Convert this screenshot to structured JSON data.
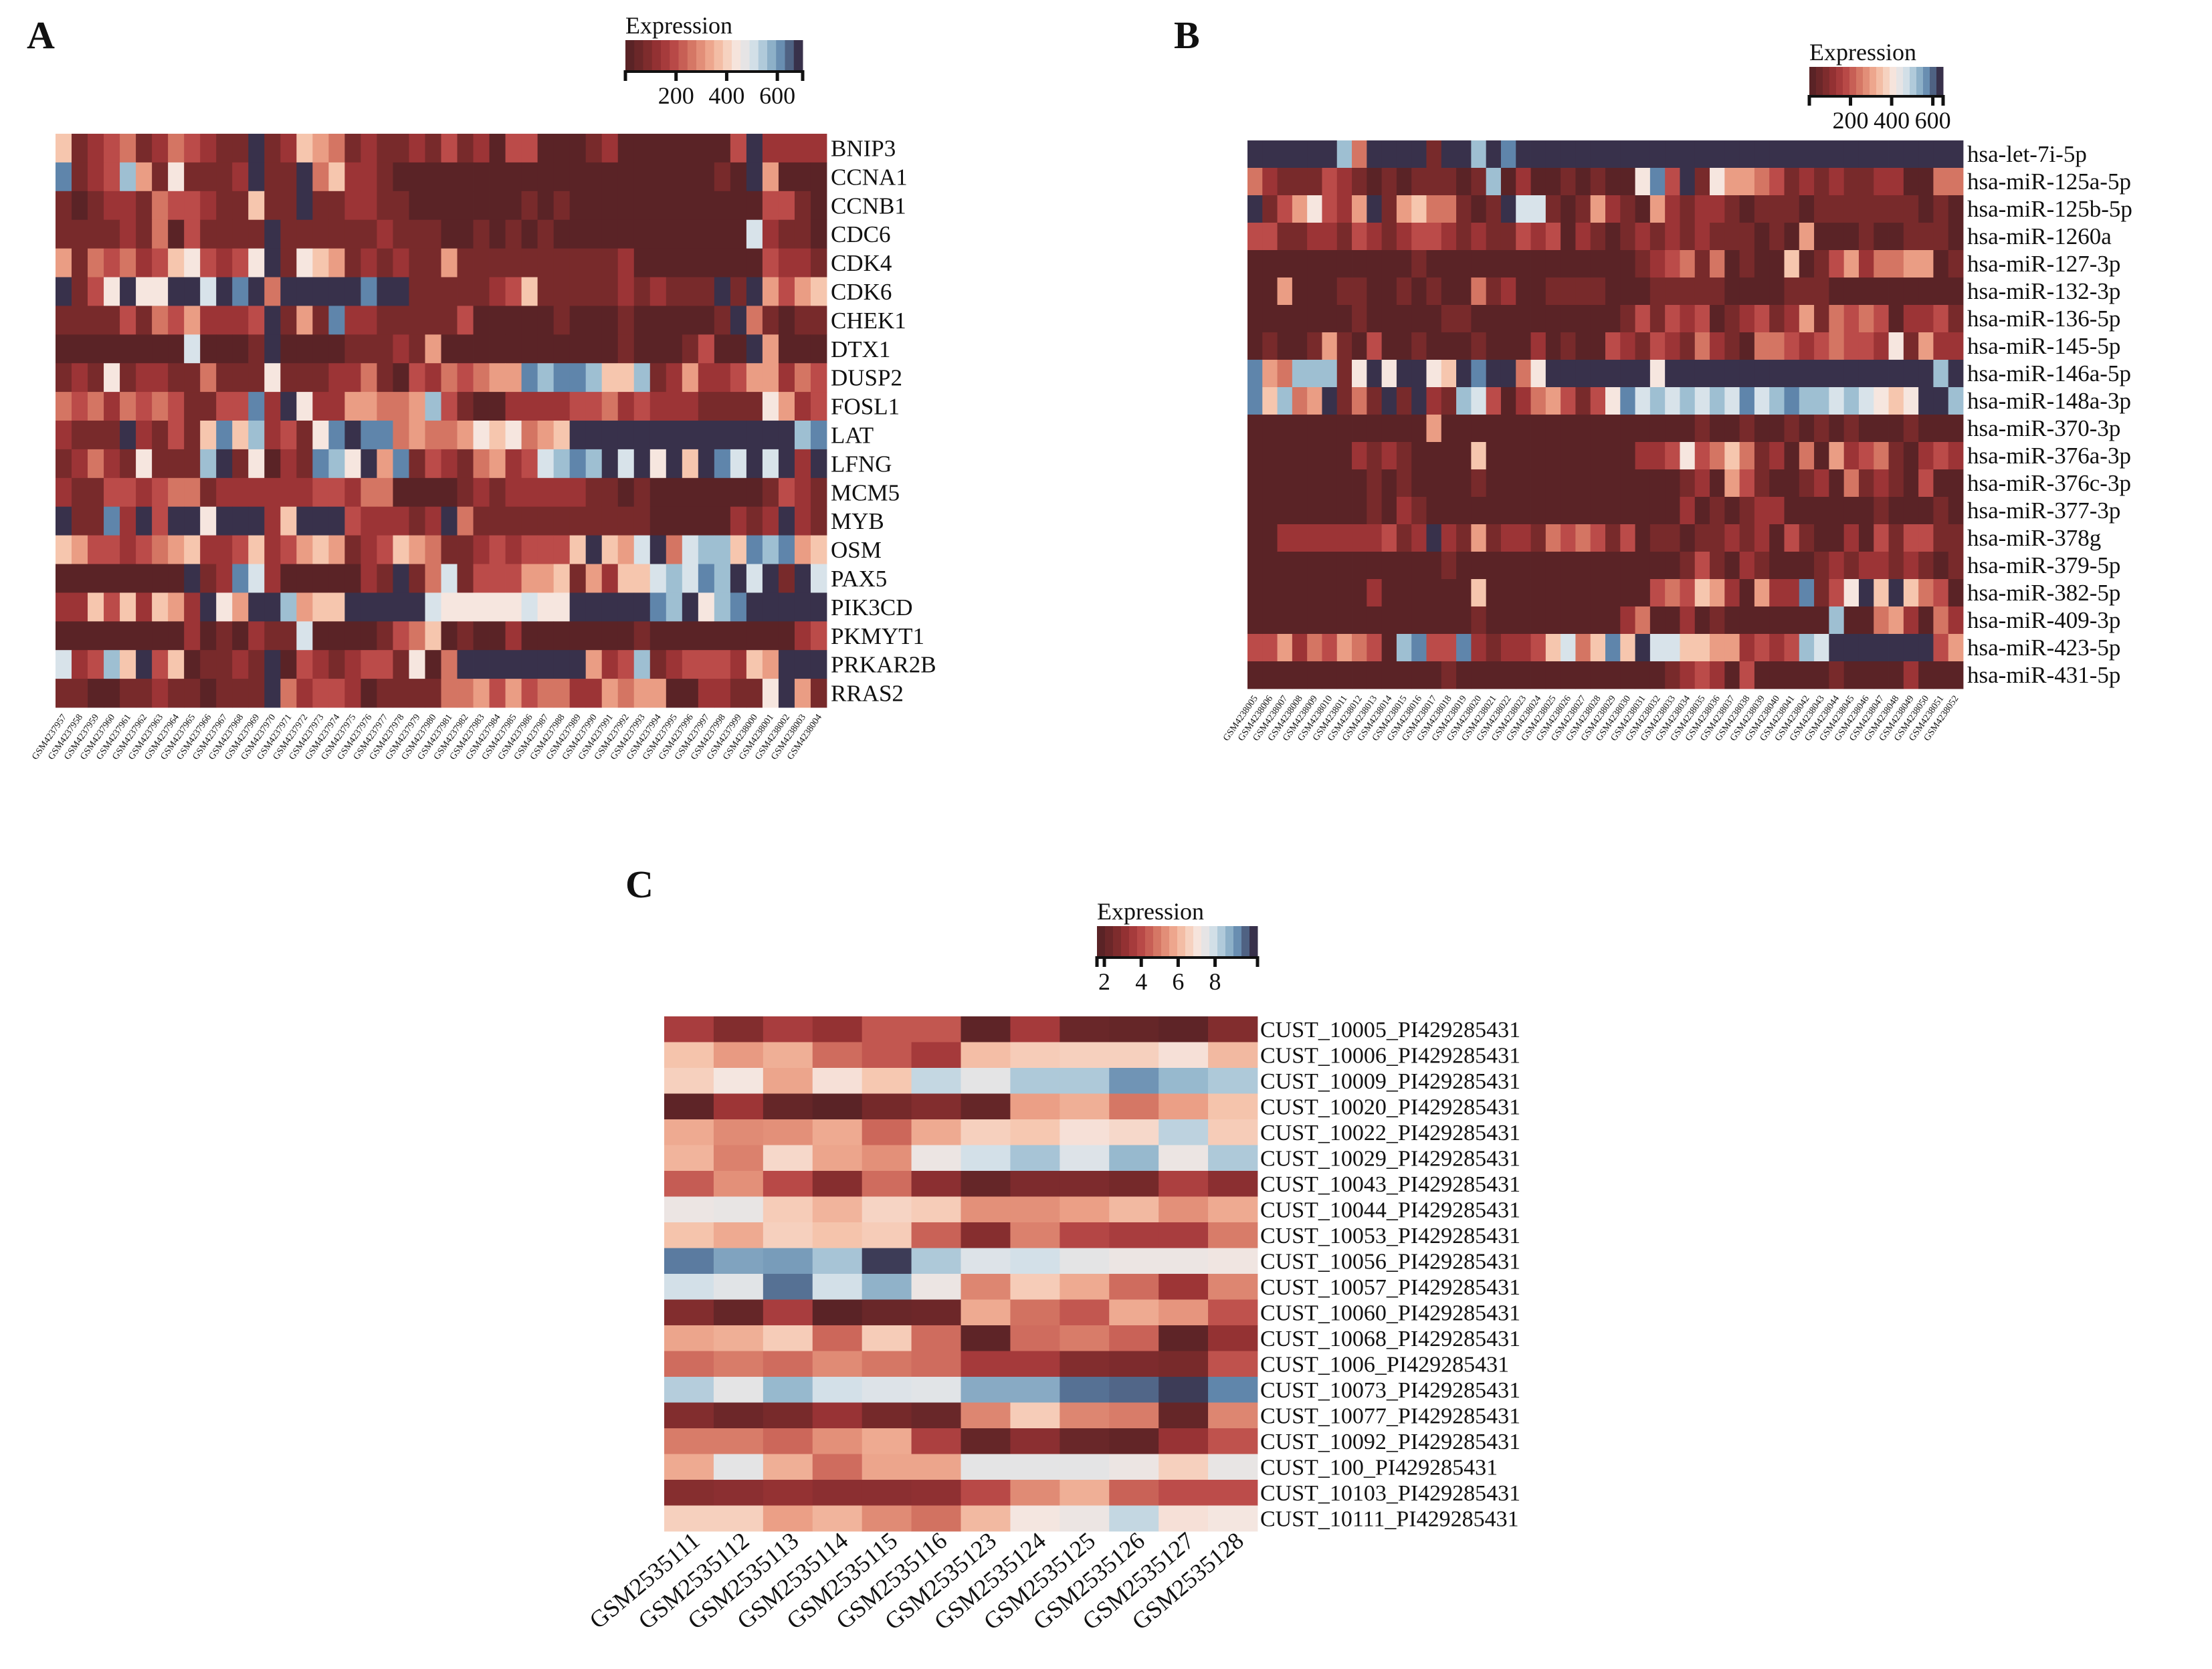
{
  "palette": [
    "#5a2326",
    "#782a2b",
    "#9c3436",
    "#bb4b49",
    "#d47563",
    "#ea9d84",
    "#f6c6ae",
    "#f6e6df",
    "#d8e3ea",
    "#9ebfd2",
    "#5f85ab",
    "#38314b"
  ],
  "chart_data": [
    {
      "panel": "A",
      "type": "heatmap",
      "legend": {
        "title": "Expression",
        "ticks": [
          "200",
          "400",
          "600"
        ],
        "range": [
          0,
          700
        ]
      },
      "level_encoding": "each character is a colour level 0-9,a(10),b(11) on the Expression scale; value ≈ level × 60",
      "rows": [
        "BNIP3",
        "CCNA1",
        "CCNB1",
        "CDC6",
        "CDK4",
        "CDK6",
        "CHEK1",
        "DTX1",
        "DUSP2",
        "FOSL1",
        "LAT",
        "LFNG",
        "MCM5",
        "MYB",
        "OSM",
        "PAX5",
        "PIK3CD",
        "PKMYT1",
        "PRKAR2B",
        "RRAS2"
      ],
      "columns": [
        "GSM4237957",
        "GSM4237958",
        "GSM4237959",
        "GSM4237960",
        "GSM4237961",
        "GSM4237962",
        "GSM4237963",
        "GSM4237964",
        "GSM4237965",
        "GSM4237966",
        "GSM4237967",
        "GSM4237968",
        "GSM4237969",
        "GSM4237970",
        "GSM4237971",
        "GSM4237972",
        "GSM4237973",
        "GSM4237974",
        "GSM4237975",
        "GSM4237976",
        "GSM4237977",
        "GSM4237978",
        "GSM4237979",
        "GSM4237980",
        "GSM4237981",
        "GSM4237982",
        "GSM4237983",
        "GSM4237984",
        "GSM4237985",
        "GSM4237986",
        "GSM4237987",
        "GSM4237988",
        "GSM4237989",
        "GSM4237990",
        "GSM4237991",
        "GSM4237992",
        "GSM4237993",
        "GSM4237994",
        "GSM4237995",
        "GSM4237996",
        "GSM4237997",
        "GSM4237998",
        "GSM4237999",
        "GSM4238000",
        "GSM4238001",
        "GSM4238002",
        "GSM4238003",
        "GSM4238004"
      ],
      "levels": [
        "61234124 3211b126 54121121 31203300 01200000 003b2222",
        "a1239517 1112b11b 46221000 00000000 00000000 010b5000",
        "10122143 3211611b 11221100 00000101 00000000 00003310",
        "11112140 31111b11 11112111 00101010 00000000 00082110",
        "51434236 73237b17 65121211 51111111 11120000 00003221",
        "b137b77b b8bab4bb bbbabb11 11123611 11121211 1b1b5356",
        "11113143 52223b15 1a221111 13000001 00010000 01b41011",
        "00000000 80001b00 00111215 00000000 00010001 300b5000",
        "12171221 14111711 12241032 43455a9a a9669125 22355243",
        "43424343 1133a2b7 22554459 31002222 33423222 11117523",
        "2111b213 16a69231 7abaa454 45767456 bbbbbbbb bbbbbb9a",
        "12421711 19b17021 a97b5a13 21452389 a9b8b7b6 ba8b8b2b",
        "21133234 41222222 33244000 01212222 21101000 00001321",
        "b11a2b3b b7bbb26b bb322212 b4111111 11111000 00212b21",
        "65332345 62236235 65123654 11232333 6b658b48 996a9a56",
        "00000000 b12a8200 00021b14 81333556 15266898 a9b8b1b8",
        "22636265 2b75bb95 66bbbbb8 77777877 bbbbba9b 79abbbbb",
        "00000000 20102118 00001346 01002000 00001000 00000023",
        "82396b36 01121b03 21233170 4bbbbbbb b5239123 33265bbb",
        "11001121 10111b42 33201111 44535344 22545500 22117b51"
      ]
    },
    {
      "panel": "B",
      "type": "heatmap",
      "legend": {
        "title": "Expression",
        "ticks": [
          "200",
          "400",
          "600"
        ],
        "range": [
          0,
          650
        ]
      },
      "level_encoding": "each character is a colour level 0-9,a(10),b(11) on the Expression scale; value ≈ level × 55",
      "rows": [
        "hsa-let-7i-5p",
        "hsa-miR-125a-5p",
        "hsa-miR-125b-5p",
        "hsa-miR-1260a",
        "hsa-miR-127-3p",
        "hsa-miR-132-3p",
        "hsa-miR-136-5p",
        "hsa-miR-145-5p",
        "hsa-miR-146a-5p",
        "hsa-miR-148a-3p",
        "hsa-miR-370-3p",
        "hsa-miR-376a-3p",
        "hsa-miR-376c-3p",
        "hsa-miR-377-3p",
        "hsa-miR-378g",
        "hsa-miR-379-5p",
        "hsa-miR-382-5p",
        "hsa-miR-409-3p",
        "hsa-miR-423-5p",
        "hsa-miR-431-5p"
      ],
      "columns": [
        "GSM4238005",
        "GSM4238006",
        "GSM4238007",
        "GSM4238008",
        "GSM4238009",
        "GSM4238010",
        "GSM4238011",
        "GSM4238012",
        "GSM4238013",
        "GSM4238014",
        "GSM4238015",
        "GSM4238016",
        "GSM4238017",
        "GSM4238018",
        "GSM4238019",
        "GSM4238020",
        "GSM4238021",
        "GSM4238022",
        "GSM4238023",
        "GSM4238024",
        "GSM4238025",
        "GSM4238026",
        "GSM4238027",
        "GSM4238028",
        "GSM4238029",
        "GSM4238030",
        "GSM4238031",
        "GSM4238032",
        "GSM4238033",
        "GSM4238034",
        "GSM4238035",
        "GSM4238036",
        "GSM4238037",
        "GSM4238038",
        "GSM4238039",
        "GSM4238040",
        "GSM4238041",
        "GSM4238042",
        "GSM4238043",
        "GSM4238044",
        "GSM4238045",
        "GSM4238046",
        "GSM4238047",
        "GSM4238048",
        "GSM4238049",
        "GSM4238050",
        "GSM4238051",
        "GSM4238052"
      ],
      "levels": [
        "bbbbbb94 bbbb1bb9 babbbbbb bbbbbbbb bbbbbbbb bbbbbbbb",
        "42111321 01011101 90200101 007a3b17 55431212 11220044",
        "b1357325 b1564410 1b881015 21052122 10111011 11111010",
        "33112213 21233212 11323021 01212121 11010500 01001110",
        "00000000 00010000 00000000 00123414 01006013 52445501",
        "00500011 00101004 12001111 00011111 00001110 00000000",
        "00000001 00000110 00000000 01313230 12312514 34302231",
        "01001510 30010001 00020100 32132142 10443234 33271522",
        "a5499917 b7bb76ba bb47bbbb bbb7bbbb bbbbbbbb bbbbbb9b",
        "a6945b14 1b1b2198 30245313 7a898989 8a89a998 98767bb9",
        "00000000 00005000 00000000 00000010 01001010 10001000",
        "00000002 12100006 00000000 00223734 64120405 23410232",
        "00000000 10100001 00000000 00000120 53100120 41210300",
        "00000000 10210000 00000000 00000201 01220000 00100010",
        "00222222 2312b215 12214343 13011011 21203100 20313311",
        "00000000 00000100 00000000 00000131 02100012 12212101",
        "00000000 20000006 00000000 00034365 20522a13 7b6b6430",
        "00000000 00000001 00000000 02400201 00000009 00452042",
        "33524354 309a33a2 12236846 a6b88665 5232398b bbbbbb35",
        "00000000 00000100 00000000 00001232 03000001 00002000"
      ]
    },
    {
      "panel": "C",
      "type": "heatmap",
      "legend": {
        "title": "Expression",
        "ticks": [
          "2",
          "4",
          "6",
          "8"
        ],
        "range": [
          1.6,
          10.3
        ]
      },
      "rows": [
        "CUST_10005_PI429285431",
        "CUST_10006_PI429285431",
        "CUST_10009_PI429285431",
        "CUST_10020_PI429285431",
        "CUST_10022_PI429285431",
        "CUST_10029_PI429285431",
        "CUST_10043_PI429285431",
        "CUST_10044_PI429285431",
        "CUST_10053_PI429285431",
        "CUST_10056_PI429285431",
        "CUST_10057_PI429285431",
        "CUST_10060_PI429285431",
        "CUST_10068_PI429285431",
        "CUST_1006_PI429285431",
        "CUST_10073_PI429285431",
        "CUST_10077_PI429285431",
        "CUST_10092_PI429285431",
        "CUST_100_PI429285431",
        "CUST_10103_PI429285431",
        "CUST_10111_PI429285431"
      ],
      "columns": [
        "GSM2535111",
        "GSM2535112",
        "GSM2535113",
        "GSM2535114",
        "GSM2535115",
        "GSM2535116",
        "GSM2535123",
        "GSM2535124",
        "GSM2535125",
        "GSM2535126",
        "GSM2535127",
        "GSM2535128"
      ],
      "values": [
        [
          3.5,
          2.6,
          3.5,
          3.0,
          4.2,
          4.2,
          1.7,
          3.4,
          2.0,
          1.9,
          1.7,
          2.6
        ],
        [
          6.3,
          5.5,
          5.9,
          4.6,
          4.2,
          3.4,
          6.2,
          6.5,
          6.6,
          6.6,
          7.0,
          6.1
        ],
        [
          6.6,
          7.2,
          5.7,
          7.0,
          6.4,
          8.2,
          7.6,
          8.5,
          8.5,
          9.3,
          8.8,
          8.5
        ],
        [
          1.7,
          3.2,
          1.9,
          1.6,
          2.3,
          2.6,
          1.9,
          5.6,
          5.9,
          4.8,
          5.6,
          6.3
        ],
        [
          5.8,
          5.2,
          5.3,
          5.8,
          4.5,
          5.8,
          6.6,
          6.4,
          7.0,
          6.8,
          8.3,
          6.5
        ],
        [
          6.0,
          5.0,
          6.8,
          5.7,
          5.3,
          7.4,
          8.0,
          8.6,
          7.8,
          8.8,
          7.4,
          8.5
        ],
        [
          4.3,
          5.3,
          3.9,
          2.7,
          4.6,
          2.8,
          1.9,
          2.5,
          2.5,
          2.3,
          3.6,
          2.8
        ],
        [
          7.4,
          7.5,
          6.5,
          6.0,
          6.7,
          6.5,
          5.3,
          5.3,
          5.6,
          6.1,
          5.3,
          5.8
        ],
        [
          6.3,
          5.8,
          6.6,
          6.3,
          6.5,
          4.4,
          2.7,
          5.0,
          3.8,
          3.5,
          3.5,
          4.9
        ],
        [
          9.6,
          9.1,
          9.2,
          8.6,
          10.2,
          8.5,
          7.8,
          8.0,
          7.6,
          7.4,
          7.4,
          7.3
        ],
        [
          8.0,
          7.7,
          9.7,
          8.0,
          8.9,
          7.4,
          5.1,
          6.5,
          5.8,
          4.6,
          3.2,
          5.1
        ],
        [
          2.6,
          1.9,
          3.5,
          1.6,
          2.0,
          2.1,
          5.8,
          4.7,
          4.2,
          5.8,
          5.4,
          4.1
        ],
        [
          5.7,
          5.9,
          6.5,
          4.5,
          6.5,
          4.6,
          1.7,
          4.6,
          4.9,
          4.4,
          1.7,
          3.0
        ],
        [
          4.6,
          4.9,
          4.6,
          5.2,
          4.8,
          4.6,
          3.4,
          3.4,
          2.6,
          2.5,
          2.4,
          4.1
        ],
        [
          8.4,
          7.6,
          8.8,
          8.0,
          7.8,
          7.7,
          9.0,
          9.0,
          9.7,
          9.8,
          10.2,
          9.5
        ],
        [
          2.6,
          2.1,
          2.4,
          3.1,
          2.3,
          2.0,
          5.1,
          6.5,
          5.1,
          4.9,
          1.9,
          5.1
        ],
        [
          4.9,
          4.9,
          4.5,
          5.3,
          5.8,
          3.6,
          1.9,
          2.8,
          2.0,
          1.8,
          3.1,
          4.1
        ],
        [
          5.8,
          7.6,
          5.9,
          4.6,
          5.7,
          5.7,
          7.6,
          7.6,
          7.6,
          7.4,
          6.6,
          7.5
        ],
        [
          2.7,
          2.8,
          3.0,
          2.8,
          2.8,
          2.9,
          3.9,
          5.2,
          5.9,
          4.4,
          4.0,
          4.0
        ],
        [
          6.6,
          6.6,
          5.6,
          6.0,
          5.2,
          4.7,
          6.1,
          7.2,
          7.4,
          8.2,
          7.0,
          7.2
        ]
      ]
    }
  ]
}
